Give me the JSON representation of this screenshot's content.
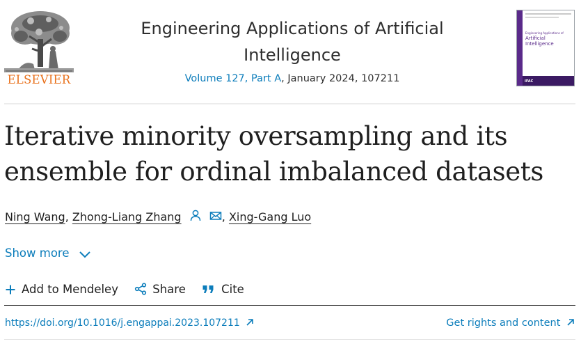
{
  "header": {
    "publisher_logo_text": "ELSEVIER",
    "journal_title": "Engineering Applications of Artificial Intelligence",
    "issue_link_text": "Volume 127, Part A",
    "issue_rest": ", January 2024, 107211",
    "cover": {
      "small_text": "Engineering Applications of",
      "name": "Artificial Intelligence",
      "footer": "IFAC"
    }
  },
  "article": {
    "title": "Iterative minority oversampling and its ensemble for ordinal imbalanced datasets",
    "authors": [
      {
        "name": "Ning Wang",
        "separator": ", "
      },
      {
        "name": "Zhong-Liang Zhang",
        "separator": ""
      },
      {
        "name": "Xing-Gang Luo",
        "separator": ""
      }
    ],
    "author_separator_after_icons": ", ",
    "show_more_label": "Show more"
  },
  "actions": {
    "add_to_mendeley": "Add to Mendeley",
    "share": "Share",
    "cite": "Cite"
  },
  "links": {
    "doi": "https://doi.org/10.1016/j.engappai.2023.107211",
    "rights": "Get rights and content"
  },
  "colors": {
    "link_blue": "#0c7dbb",
    "elsevier_orange": "#e9711c",
    "text": "#1f1f1f",
    "cover_purple": "#5a2a8a"
  },
  "icons": {
    "author_person": "person-icon",
    "author_email": "envelope-icon",
    "show_more": "chevron-down-icon",
    "mendeley": "plus-icon",
    "share": "share-icon",
    "cite": "quote-icon",
    "external": "arrow-up-right-icon"
  }
}
